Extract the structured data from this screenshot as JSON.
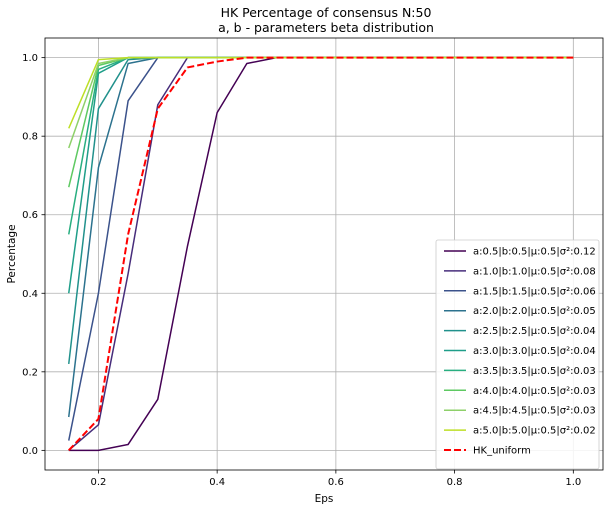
{
  "chart_data": {
    "type": "line",
    "title": "HK Percentage of consensus N:50",
    "subtitle": "a, b - parameters beta distribution",
    "xlabel": "Eps",
    "ylabel": "Percentage",
    "xlim": [
      0.11,
      1.05
    ],
    "ylim": [
      -0.05,
      1.05
    ],
    "xticks": [
      0.2,
      0.4,
      0.6,
      0.8,
      1.0
    ],
    "xtick_labels": [
      "0.2",
      "0.4",
      "0.6",
      "0.8",
      "1.0"
    ],
    "yticks": [
      0.0,
      0.2,
      0.4,
      0.6,
      0.8,
      1.0
    ],
    "ytick_labels": [
      "0.0",
      "0.2",
      "0.4",
      "0.6",
      "0.8",
      "1.0"
    ],
    "grid": true,
    "legend_position": "lower-right",
    "x": [
      0.15,
      0.2,
      0.25,
      0.3,
      0.35,
      0.4,
      0.45,
      0.5,
      0.55,
      0.6,
      0.65,
      0.7,
      0.75,
      0.8,
      0.85,
      0.9,
      0.95,
      1.0
    ],
    "series": [
      {
        "name": "a:0.5|b:0.5|μ:0.5|σ²:0.12",
        "color": "#440154",
        "values": [
          0.0,
          0.0,
          0.015,
          0.13,
          0.52,
          0.86,
          0.985,
          1.0,
          1.0,
          1.0,
          1.0,
          1.0,
          1.0,
          1.0,
          1.0,
          1.0,
          1.0,
          1.0
        ]
      },
      {
        "name": "a:1.0|b:1.0|μ:0.5|σ²:0.08",
        "color": "#472d7b",
        "values": [
          0.0,
          0.065,
          0.45,
          0.88,
          1.0,
          1.0,
          1.0,
          1.0,
          1.0,
          1.0,
          1.0,
          1.0,
          1.0,
          1.0,
          1.0,
          1.0,
          1.0,
          1.0
        ]
      },
      {
        "name": "a:1.5|b:1.5|μ:0.5|σ²:0.06",
        "color": "#3b528b",
        "values": [
          0.025,
          0.4,
          0.89,
          1.0,
          1.0,
          1.0,
          1.0,
          1.0,
          1.0,
          1.0,
          1.0,
          1.0,
          1.0,
          1.0,
          1.0,
          1.0,
          1.0,
          1.0
        ]
      },
      {
        "name": "a:2.0|b:2.0|μ:0.5|σ²:0.05",
        "color": "#2c728e",
        "values": [
          0.085,
          0.72,
          0.985,
          1.0,
          1.0,
          1.0,
          1.0,
          1.0,
          1.0,
          1.0,
          1.0,
          1.0,
          1.0,
          1.0,
          1.0,
          1.0,
          1.0,
          1.0
        ]
      },
      {
        "name": "a:2.5|b:2.5|μ:0.5|σ²:0.04",
        "color": "#21918c",
        "values": [
          0.22,
          0.87,
          0.995,
          1.0,
          1.0,
          1.0,
          1.0,
          1.0,
          1.0,
          1.0,
          1.0,
          1.0,
          1.0,
          1.0,
          1.0,
          1.0,
          1.0,
          1.0
        ]
      },
      {
        "name": "a:3.0|b:3.0|μ:0.5|σ²:0.04",
        "color": "#1f9e89",
        "values": [
          0.4,
          0.96,
          1.0,
          1.0,
          1.0,
          1.0,
          1.0,
          1.0,
          1.0,
          1.0,
          1.0,
          1.0,
          1.0,
          1.0,
          1.0,
          1.0,
          1.0,
          1.0
        ]
      },
      {
        "name": "a:3.5|b:3.5|μ:0.5|σ²:0.03",
        "color": "#28ae80",
        "values": [
          0.55,
          0.97,
          1.0,
          1.0,
          1.0,
          1.0,
          1.0,
          1.0,
          1.0,
          1.0,
          1.0,
          1.0,
          1.0,
          1.0,
          1.0,
          1.0,
          1.0,
          1.0
        ]
      },
      {
        "name": "a:4.0|b:4.0|μ:0.5|σ²:0.03",
        "color": "#5ec962",
        "values": [
          0.67,
          0.98,
          1.0,
          1.0,
          1.0,
          1.0,
          1.0,
          1.0,
          1.0,
          1.0,
          1.0,
          1.0,
          1.0,
          1.0,
          1.0,
          1.0,
          1.0,
          1.0
        ]
      },
      {
        "name": "a:4.5|b:4.5|μ:0.5|σ²:0.03",
        "color": "#8ed06a",
        "values": [
          0.77,
          0.985,
          1.0,
          1.0,
          1.0,
          1.0,
          1.0,
          1.0,
          1.0,
          1.0,
          1.0,
          1.0,
          1.0,
          1.0,
          1.0,
          1.0,
          1.0,
          1.0
        ]
      },
      {
        "name": "a:5.0|b:5.0|μ:0.5|σ²:0.02",
        "color": "#bddf26",
        "values": [
          0.82,
          0.995,
          1.0,
          1.0,
          1.0,
          1.0,
          1.0,
          1.0,
          1.0,
          1.0,
          1.0,
          1.0,
          1.0,
          1.0,
          1.0,
          1.0,
          1.0,
          1.0
        ]
      },
      {
        "name": "HK_uniform",
        "color": "#ff0000",
        "dashed": true,
        "values": [
          0.0,
          0.08,
          0.55,
          0.87,
          0.975,
          0.99,
          1.0,
          1.0,
          1.0,
          1.0,
          1.0,
          1.0,
          1.0,
          1.0,
          1.0,
          1.0,
          1.0,
          1.0
        ]
      }
    ]
  }
}
